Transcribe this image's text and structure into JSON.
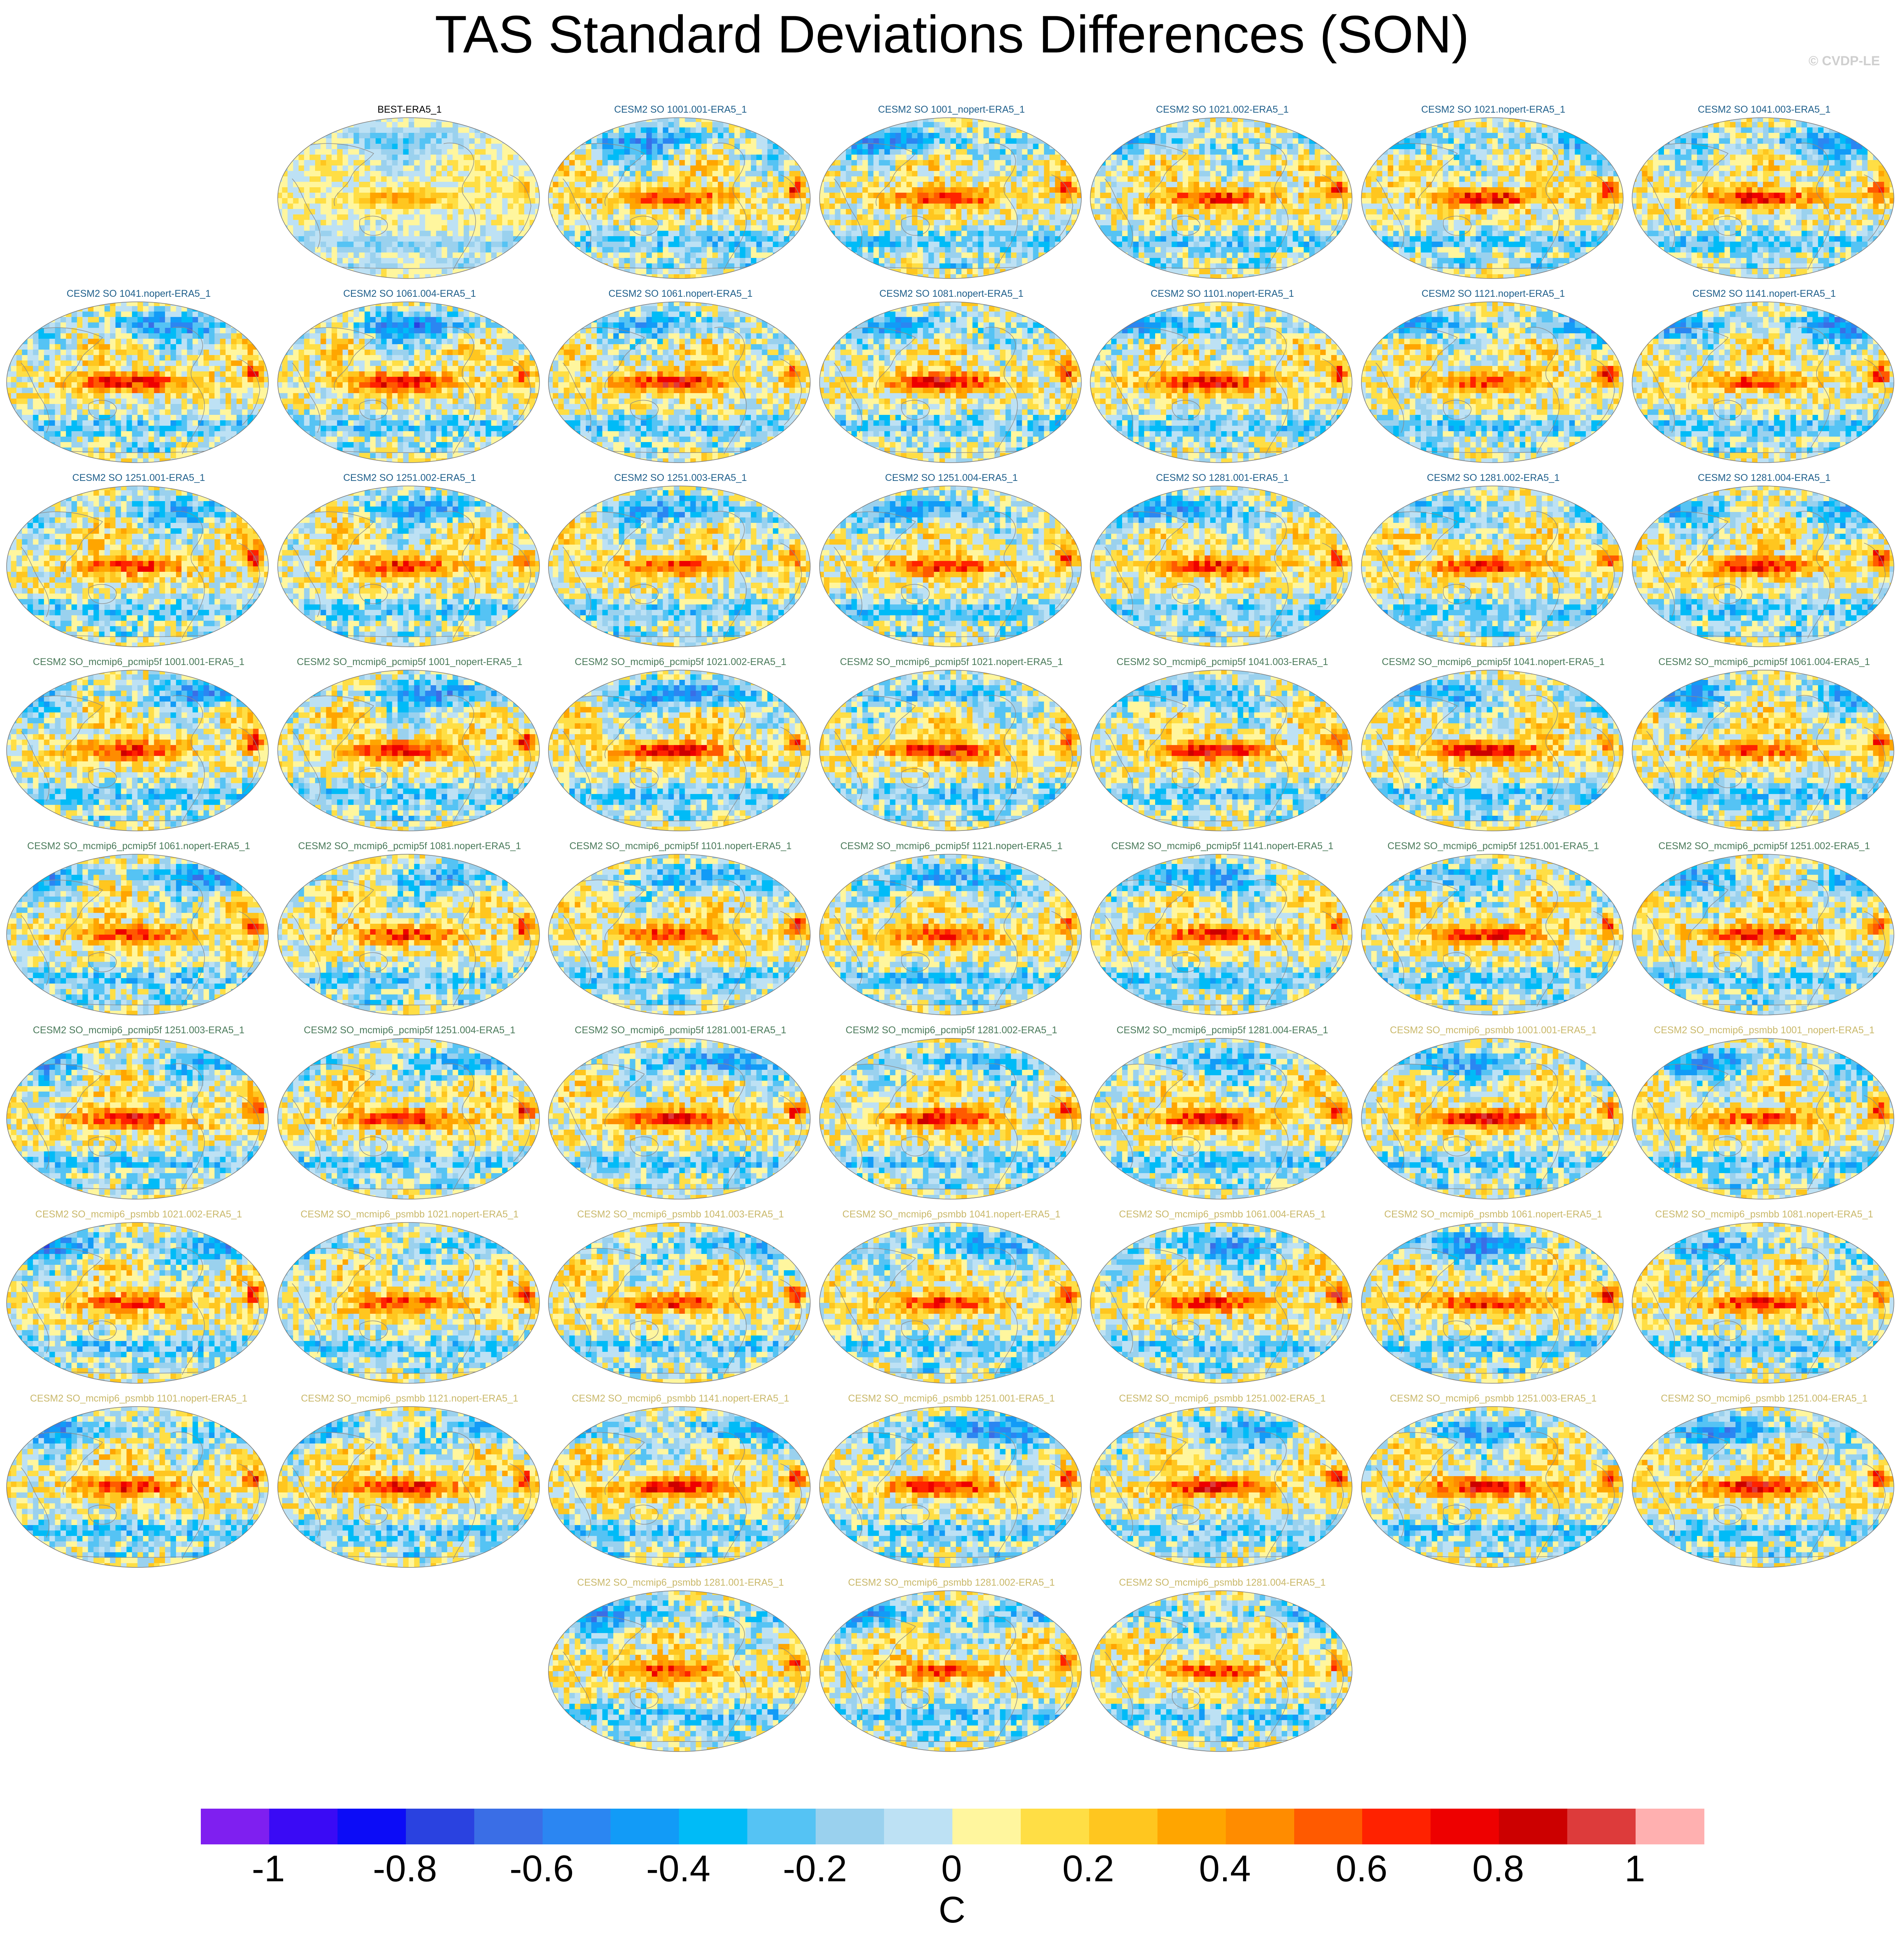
{
  "title": "TAS Standard Deviations Differences (SON)",
  "watermark": "© CVDP-LE",
  "chart_data": {
    "type": "heatmap",
    "description_kind": "grid of global map panels (Robinson-like projection) with filled contours",
    "title": "TAS Standard Deviations Differences (SON)",
    "colorbar": {
      "unit": "C",
      "ticks": [
        -1,
        -0.8,
        -0.6,
        -0.4,
        -0.2,
        0,
        0.2,
        0.4,
        0.6,
        0.8,
        1
      ],
      "tick_labels": [
        "-1",
        "-0.8",
        "-0.6",
        "-0.4",
        "-0.2",
        "0",
        "0.2",
        "0.4",
        "0.6",
        "0.8",
        "1"
      ],
      "levels": [
        -1.1,
        -1.0,
        -0.9,
        -0.8,
        -0.7,
        -0.6,
        -0.5,
        -0.4,
        -0.3,
        -0.2,
        -0.1,
        0,
        0.1,
        0.2,
        0.3,
        0.4,
        0.5,
        0.6,
        0.7,
        0.8,
        0.9,
        1.0,
        1.1
      ],
      "colors": [
        "#7f1ff0",
        "#3a0af5",
        "#0c0cf7",
        "#2a42e0",
        "#3a6ee6",
        "#2b86f2",
        "#129bf7",
        "#00bbf7",
        "#55c3f4",
        "#9ad1ee",
        "#bde1f4",
        "#fff69e",
        "#ffde45",
        "#ffc61f",
        "#ffa500",
        "#ff8c00",
        "#ff5a00",
        "#ff2200",
        "#ee0000",
        "#cc0000",
        "#dd3b3b",
        "#ffb0b0"
      ]
    },
    "panels": [
      {
        "name": "BEST-ERA5_1",
        "color": "#000000",
        "row": 0,
        "col": 1
      },
      {
        "name": "CESM2 SO 1001.001-ERA5_1",
        "color": "#1f5f8b",
        "row": 0,
        "col": 2
      },
      {
        "name": "CESM2 SO 1001_nopert-ERA5_1",
        "color": "#1f5f8b",
        "row": 0,
        "col": 3
      },
      {
        "name": "CESM2 SO 1021.002-ERA5_1",
        "color": "#1f5f8b",
        "row": 0,
        "col": 4
      },
      {
        "name": "CESM2 SO 1021.nopert-ERA5_1",
        "color": "#1f5f8b",
        "row": 0,
        "col": 5
      },
      {
        "name": "CESM2 SO 1041.003-ERA5_1",
        "color": "#1f5f8b",
        "row": 0,
        "col": 6
      },
      {
        "name": "CESM2 SO 1041.nopert-ERA5_1",
        "color": "#1f5f8b",
        "row": 1,
        "col": 0
      },
      {
        "name": "CESM2 SO 1061.004-ERA5_1",
        "color": "#1f5f8b",
        "row": 1,
        "col": 1
      },
      {
        "name": "CESM2 SO 1061.nopert-ERA5_1",
        "color": "#1f5f8b",
        "row": 1,
        "col": 2
      },
      {
        "name": "CESM2 SO 1081.nopert-ERA5_1",
        "color": "#1f5f8b",
        "row": 1,
        "col": 3
      },
      {
        "name": "CESM2 SO 1101.nopert-ERA5_1",
        "color": "#1f5f8b",
        "row": 1,
        "col": 4
      },
      {
        "name": "CESM2 SO 1121.nopert-ERA5_1",
        "color": "#1f5f8b",
        "row": 1,
        "col": 5
      },
      {
        "name": "CESM2 SO 1141.nopert-ERA5_1",
        "color": "#1f5f8b",
        "row": 1,
        "col": 6
      },
      {
        "name": "CESM2 SO 1251.001-ERA5_1",
        "color": "#1f5f8b",
        "row": 2,
        "col": 0
      },
      {
        "name": "CESM2 SO 1251.002-ERA5_1",
        "color": "#1f5f8b",
        "row": 2,
        "col": 1
      },
      {
        "name": "CESM2 SO 1251.003-ERA5_1",
        "color": "#1f5f8b",
        "row": 2,
        "col": 2
      },
      {
        "name": "CESM2 SO 1251.004-ERA5_1",
        "color": "#1f5f8b",
        "row": 2,
        "col": 3
      },
      {
        "name": "CESM2 SO 1281.001-ERA5_1",
        "color": "#1f5f8b",
        "row": 2,
        "col": 4
      },
      {
        "name": "CESM2 SO 1281.002-ERA5_1",
        "color": "#1f5f8b",
        "row": 2,
        "col": 5
      },
      {
        "name": "CESM2 SO 1281.004-ERA5_1",
        "color": "#1f5f8b",
        "row": 2,
        "col": 6
      },
      {
        "name": "CESM2 SO_mcmip6_pcmip5f 1001.001-ERA5_1",
        "color": "#4a7a5a",
        "row": 3,
        "col": 0
      },
      {
        "name": "CESM2 SO_mcmip6_pcmip5f 1001_nopert-ERA5_1",
        "color": "#4a7a5a",
        "row": 3,
        "col": 1
      },
      {
        "name": "CESM2 SO_mcmip6_pcmip5f 1021.002-ERA5_1",
        "color": "#4a7a5a",
        "row": 3,
        "col": 2
      },
      {
        "name": "CESM2 SO_mcmip6_pcmip5f 1021.nopert-ERA5_1",
        "color": "#4a7a5a",
        "row": 3,
        "col": 3
      },
      {
        "name": "CESM2 SO_mcmip6_pcmip5f 1041.003-ERA5_1",
        "color": "#4a7a5a",
        "row": 3,
        "col": 4
      },
      {
        "name": "CESM2 SO_mcmip6_pcmip5f 1041.nopert-ERA5_1",
        "color": "#4a7a5a",
        "row": 3,
        "col": 5
      },
      {
        "name": "CESM2 SO_mcmip6_pcmip5f 1061.004-ERA5_1",
        "color": "#4a7a5a",
        "row": 3,
        "col": 6
      },
      {
        "name": "CESM2 SO_mcmip6_pcmip5f 1061.nopert-ERA5_1",
        "color": "#4a7a5a",
        "row": 4,
        "col": 0
      },
      {
        "name": "CESM2 SO_mcmip6_pcmip5f 1081.nopert-ERA5_1",
        "color": "#4a7a5a",
        "row": 4,
        "col": 1
      },
      {
        "name": "CESM2 SO_mcmip6_pcmip5f 1101.nopert-ERA5_1",
        "color": "#4a7a5a",
        "row": 4,
        "col": 2
      },
      {
        "name": "CESM2 SO_mcmip6_pcmip5f 1121.nopert-ERA5_1",
        "color": "#4a7a5a",
        "row": 4,
        "col": 3
      },
      {
        "name": "CESM2 SO_mcmip6_pcmip5f 1141.nopert-ERA5_1",
        "color": "#4a7a5a",
        "row": 4,
        "col": 4
      },
      {
        "name": "CESM2 SO_mcmip6_pcmip5f 1251.001-ERA5_1",
        "color": "#4a7a5a",
        "row": 4,
        "col": 5
      },
      {
        "name": "CESM2 SO_mcmip6_pcmip5f 1251.002-ERA5_1",
        "color": "#4a7a5a",
        "row": 4,
        "col": 6
      },
      {
        "name": "CESM2 SO_mcmip6_pcmip5f 1251.003-ERA5_1",
        "color": "#4a7a5a",
        "row": 5,
        "col": 0
      },
      {
        "name": "CESM2 SO_mcmip6_pcmip5f 1251.004-ERA5_1",
        "color": "#4a7a5a",
        "row": 5,
        "col": 1
      },
      {
        "name": "CESM2 SO_mcmip6_pcmip5f 1281.001-ERA5_1",
        "color": "#4a7a5a",
        "row": 5,
        "col": 2
      },
      {
        "name": "CESM2 SO_mcmip6_pcmip5f 1281.002-ERA5_1",
        "color": "#4a7a5a",
        "row": 5,
        "col": 3
      },
      {
        "name": "CESM2 SO_mcmip6_pcmip5f 1281.004-ERA5_1",
        "color": "#4a7a5a",
        "row": 5,
        "col": 4
      },
      {
        "name": "CESM2 SO_mcmip6_psmbb 1001.001-ERA5_1",
        "color": "#c9b86a",
        "row": 5,
        "col": 5
      },
      {
        "name": "CESM2 SO_mcmip6_psmbb 1001_nopert-ERA5_1",
        "color": "#c9b86a",
        "row": 5,
        "col": 6
      },
      {
        "name": "CESM2 SO_mcmip6_psmbb 1021.002-ERA5_1",
        "color": "#c9b86a",
        "row": 6,
        "col": 0
      },
      {
        "name": "CESM2 SO_mcmip6_psmbb 1021.nopert-ERA5_1",
        "color": "#c9b86a",
        "row": 6,
        "col": 1
      },
      {
        "name": "CESM2 SO_mcmip6_psmbb 1041.003-ERA5_1",
        "color": "#c9b86a",
        "row": 6,
        "col": 2
      },
      {
        "name": "CESM2 SO_mcmip6_psmbb 1041.nopert-ERA5_1",
        "color": "#c9b86a",
        "row": 6,
        "col": 3
      },
      {
        "name": "CESM2 SO_mcmip6_psmbb 1061.004-ERA5_1",
        "color": "#c9b86a",
        "row": 6,
        "col": 4
      },
      {
        "name": "CESM2 SO_mcmip6_psmbb 1061.nopert-ERA5_1",
        "color": "#c9b86a",
        "row": 6,
        "col": 5
      },
      {
        "name": "CESM2 SO_mcmip6_psmbb 1081.nopert-ERA5_1",
        "color": "#c9b86a",
        "row": 6,
        "col": 6
      },
      {
        "name": "CESM2 SO_mcmip6_psmbb 1101.nopert-ERA5_1",
        "color": "#c9b86a",
        "row": 7,
        "col": 0
      },
      {
        "name": "CESM2 SO_mcmip6_psmbb 1121.nopert-ERA5_1",
        "color": "#c9b86a",
        "row": 7,
        "col": 1
      },
      {
        "name": "CESM2 SO_mcmip6_psmbb 1141.nopert-ERA5_1",
        "color": "#c9b86a",
        "row": 7,
        "col": 2
      },
      {
        "name": "CESM2 SO_mcmip6_psmbb 1251.001-ERA5_1",
        "color": "#c9b86a",
        "row": 7,
        "col": 3
      },
      {
        "name": "CESM2 SO_mcmip6_psmbb 1251.002-ERA5_1",
        "color": "#c9b86a",
        "row": 7,
        "col": 4
      },
      {
        "name": "CESM2 SO_mcmip6_psmbb 1251.003-ERA5_1",
        "color": "#c9b86a",
        "row": 7,
        "col": 5
      },
      {
        "name": "CESM2 SO_mcmip6_psmbb 1251.004-ERA5_1",
        "color": "#c9b86a",
        "row": 7,
        "col": 6
      },
      {
        "name": "CESM2 SO_mcmip6_psmbb 1281.001-ERA5_1",
        "color": "#c9b86a",
        "row": 8,
        "col": 2
      },
      {
        "name": "CESM2 SO_mcmip6_psmbb 1281.002-ERA5_1",
        "color": "#c9b86a",
        "row": 8,
        "col": 3
      },
      {
        "name": "CESM2 SO_mcmip6_psmbb 1281.004-ERA5_1",
        "color": "#c9b86a",
        "row": 8,
        "col": 4
      }
    ]
  }
}
